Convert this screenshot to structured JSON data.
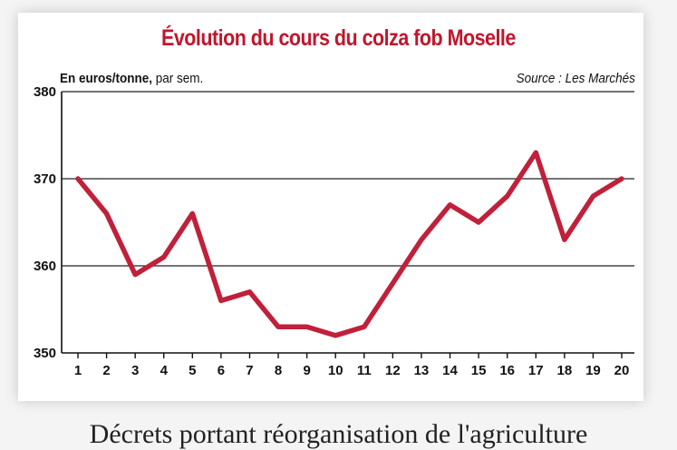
{
  "header": {
    "title": "Évolution du cours du colza fob Moselle",
    "unit_bold": "En euros/tonne,",
    "unit_rest": " par sem.",
    "source": "Source : Les Marchés"
  },
  "caption": "Décrets portant réorganisation de l'agriculture",
  "colors": {
    "title": "#c0162c",
    "line": "#c0203a",
    "grid": "#222222"
  },
  "chart_data": {
    "type": "line",
    "title": "Évolution du cours du colza fob Moselle",
    "xlabel": "",
    "ylabel": "En euros/tonne, par sem.",
    "x": [
      1,
      2,
      3,
      4,
      5,
      6,
      7,
      8,
      9,
      10,
      11,
      12,
      13,
      14,
      15,
      16,
      17,
      18,
      19,
      20
    ],
    "series": [
      {
        "values": [
          370,
          366,
          359,
          361,
          366,
          356,
          357,
          353,
          353,
          352,
          353,
          358,
          363,
          367,
          365,
          368,
          373,
          363,
          368,
          370
        ]
      }
    ],
    "ylim": [
      350,
      380
    ],
    "yticks": [
      350,
      360,
      370,
      380
    ],
    "grid": "horizontal"
  }
}
